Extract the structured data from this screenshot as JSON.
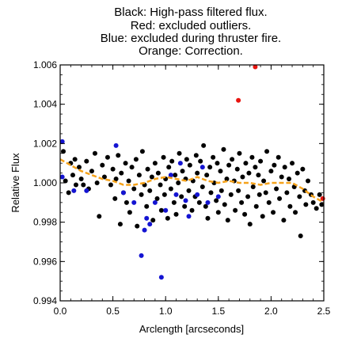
{
  "chart_data": {
    "type": "scatter",
    "title_lines": [
      "Black: High-pass filtered flux.",
      "Red: excluded outliers.",
      "Blue: excluded during thruster fire.",
      "Orange: Correction."
    ],
    "xlabel": "Arclength [arcseconds]",
    "ylabel": "Relative Flux",
    "xlim": [
      0.0,
      2.5
    ],
    "ylim": [
      0.994,
      1.006
    ],
    "x_ticks": [
      "0.0",
      "0.5",
      "1.0",
      "1.5",
      "2.0",
      "2.5"
    ],
    "y_ticks": [
      "0.994",
      "0.996",
      "0.998",
      "1.000",
      "1.002",
      "1.004",
      "1.006"
    ],
    "grid": false,
    "colors": {
      "black": "#000000",
      "red": "#e8140f",
      "blue": "#1414d2",
      "orange": "#f5a21a"
    },
    "series": [
      {
        "color": "black",
        "points": [
          [
            0.03,
            1.0016
          ],
          [
            0.05,
            1.0001
          ],
          [
            0.08,
            0.9995
          ],
          [
            0.1,
            1.001
          ],
          [
            0.12,
            1.0004
          ],
          [
            0.14,
            1.0012
          ],
          [
            0.15,
            0.9999
          ],
          [
            0.18,
            1.0008
          ],
          [
            0.2,
            1.0002
          ],
          [
            0.22,
            0.9999
          ],
          [
            0.25,
            1.0011
          ],
          [
            0.27,
            0.9997
          ],
          [
            0.3,
            1.0006
          ],
          [
            0.33,
            1.0015
          ],
          [
            0.35,
            1.0
          ],
          [
            0.37,
            0.9983
          ],
          [
            0.4,
            1.0009
          ],
          [
            0.42,
            1.0003
          ],
          [
            0.45,
            1.0013
          ],
          [
            0.48,
            0.9999
          ],
          [
            0.5,
            1.0007
          ],
          [
            0.52,
            0.9992
          ],
          [
            0.53,
            1.0002
          ],
          [
            0.55,
            1.0014
          ],
          [
            0.57,
            0.9979
          ],
          [
            0.58,
            1.0005
          ],
          [
            0.6,
            0.9995
          ],
          [
            0.62,
            1.001
          ],
          [
            0.63,
            0.999
          ],
          [
            0.65,
            1.0001
          ],
          [
            0.66,
            0.9985
          ],
          [
            0.68,
            1.0008
          ],
          [
            0.7,
            0.9997
          ],
          [
            0.72,
            1.0012
          ],
          [
            0.73,
            0.9978
          ],
          [
            0.75,
            1.0004
          ],
          [
            0.77,
            0.9994
          ],
          [
            0.78,
            1.0016
          ],
          [
            0.8,
            0.9999
          ],
          [
            0.82,
            0.9988
          ],
          [
            0.83,
            1.0007
          ],
          [
            0.85,
            0.9996
          ],
          [
            0.87,
            1.0003
          ],
          [
            0.88,
            0.9981
          ],
          [
            0.9,
            1.001
          ],
          [
            0.92,
            0.9992
          ],
          [
            0.93,
            1.0005
          ],
          [
            0.95,
            0.9999
          ],
          [
            0.96,
            0.9986
          ],
          [
            0.98,
            1.0013
          ],
          [
            0.99,
            0.9994
          ],
          [
            1.0,
            1.0002
          ],
          [
            1.02,
            0.9982
          ],
          [
            1.03,
            1.0008
          ],
          [
            1.05,
            0.9997
          ],
          [
            1.06,
            1.0011
          ],
          [
            1.08,
            0.999
          ],
          [
            1.09,
            1.0004
          ],
          [
            1.1,
            0.9984
          ],
          [
            1.12,
            1.0
          ],
          [
            1.13,
            1.0015
          ],
          [
            1.15,
            0.9993
          ],
          [
            1.16,
            1.0006
          ],
          [
            1.18,
            0.9988
          ],
          [
            1.19,
            1.0002
          ],
          [
            1.2,
            1.0012
          ],
          [
            1.22,
            0.9996
          ],
          [
            1.23,
            1.0009
          ],
          [
            1.25,
            0.9986
          ],
          [
            1.26,
            1.0001
          ],
          [
            1.28,
            0.9993
          ],
          [
            1.29,
            1.0014
          ],
          [
            1.3,
            1.0005
          ],
          [
            1.32,
            0.999
          ],
          [
            1.33,
            1.0011
          ],
          [
            1.35,
            0.9998
          ],
          [
            1.36,
            1.0019
          ],
          [
            1.38,
            0.9988
          ],
          [
            1.39,
            1.0004
          ],
          [
            1.4,
            0.9982
          ],
          [
            1.42,
            1.0008
          ],
          [
            1.43,
            0.9995
          ],
          [
            1.45,
            1.0013
          ],
          [
            1.46,
            1.0
          ],
          [
            1.48,
            0.9991
          ],
          [
            1.49,
            1.001
          ],
          [
            1.5,
            0.9985
          ],
          [
            1.52,
            1.0006
          ],
          [
            1.53,
            0.9996
          ],
          [
            1.55,
            1.0017
          ],
          [
            1.56,
            0.9989
          ],
          [
            1.58,
            1.0002
          ],
          [
            1.59,
            0.9981
          ],
          [
            1.6,
            1.0009
          ],
          [
            1.62,
            0.9994
          ],
          [
            1.63,
            1.0012
          ],
          [
            1.65,
            1.0001
          ],
          [
            1.66,
            0.9986
          ],
          [
            1.68,
            1.0007
          ],
          [
            1.69,
            0.9996
          ],
          [
            1.7,
            1.0015
          ],
          [
            1.72,
            0.999
          ],
          [
            1.73,
            1.0003
          ],
          [
            1.75,
            0.9984
          ],
          [
            1.76,
            1.001
          ],
          [
            1.78,
            0.9993
          ],
          [
            1.79,
            1.0005
          ],
          [
            1.8,
            0.9979
          ],
          [
            1.82,
            1.0013
          ],
          [
            1.83,
            0.9998
          ],
          [
            1.85,
            1.0008
          ],
          [
            1.86,
            0.9988
          ],
          [
            1.88,
            1.0004
          ],
          [
            1.89,
            0.9994
          ],
          [
            1.9,
            1.0011
          ],
          [
            1.92,
            0.9983
          ],
          [
            1.93,
            1.0001
          ],
          [
            1.95,
            0.9995
          ],
          [
            1.96,
            1.0016
          ],
          [
            1.98,
            0.999
          ],
          [
            2.0,
            1.0006
          ],
          [
            2.02,
            0.9985
          ],
          [
            2.03,
            1.0009
          ],
          [
            2.05,
            0.9997
          ],
          [
            2.07,
            1.0013
          ],
          [
            2.08,
            0.9992
          ],
          [
            2.1,
            1.0003
          ],
          [
            2.12,
            0.9981
          ],
          [
            2.13,
            1.0008
          ],
          [
            2.15,
            0.9995
          ],
          [
            2.17,
            1.0002
          ],
          [
            2.18,
            0.9988
          ],
          [
            2.2,
            1.001
          ],
          [
            2.22,
            0.9998
          ],
          [
            2.23,
            0.9985
          ],
          [
            2.25,
            1.0005
          ],
          [
            2.27,
            0.9993
          ],
          [
            2.28,
            0.9973
          ],
          [
            2.3,
            1.0007
          ],
          [
            2.32,
            0.9996
          ],
          [
            2.33,
            0.9989
          ],
          [
            2.35,
            1.0001
          ],
          [
            2.38,
            0.9994
          ],
          [
            2.4,
            0.999
          ],
          [
            2.43,
            0.9987
          ],
          [
            2.46,
            0.9994
          ],
          [
            2.48,
            0.9989
          ]
        ]
      },
      {
        "color": "red",
        "points": [
          [
            1.69,
            1.0042
          ],
          [
            1.85,
            1.0059
          ],
          [
            2.49,
            0.9992
          ]
        ]
      },
      {
        "color": "blue",
        "points": [
          [
            0.02,
            1.0021
          ],
          [
            0.02,
            1.0003
          ],
          [
            0.13,
            0.9996
          ],
          [
            0.25,
            0.9996
          ],
          [
            0.53,
            1.0019
          ],
          [
            0.6,
            0.9995
          ],
          [
            0.7,
            0.999
          ],
          [
            0.77,
            0.9963
          ],
          [
            0.8,
            0.9976
          ],
          [
            0.82,
            0.9982
          ],
          [
            0.85,
            0.9979
          ],
          [
            0.9,
            0.999
          ],
          [
            0.96,
            0.9952
          ],
          [
            1.0,
            0.9986
          ],
          [
            1.05,
            1.0004
          ],
          [
            1.1,
            0.9994
          ],
          [
            1.14,
            1.001
          ],
          [
            1.19,
            0.9991
          ],
          [
            1.22,
            0.9983
          ],
          [
            1.3,
            0.9994
          ],
          [
            1.35,
            1.0008
          ],
          [
            1.4,
            0.999
          ],
          [
            1.5,
            0.9993
          ]
        ]
      }
    ],
    "correction_line": {
      "color": "orange",
      "x": [
        0.0,
        0.1,
        0.2,
        0.3,
        0.4,
        0.5,
        0.6,
        0.7,
        0.8,
        0.9,
        1.0,
        1.1,
        1.2,
        1.3,
        1.4,
        1.5,
        1.6,
        1.7,
        1.8,
        1.9,
        2.0,
        2.1,
        2.2,
        2.3,
        2.4,
        2.5
      ],
      "y": [
        1.0012,
        1.0009,
        1.0006,
        1.0004,
        1.0002,
        1.0001,
        0.9999,
        0.9999,
        1.0,
        1.0002,
        1.0003,
        1.0002,
        1.0001,
        1.0003,
        1.0001,
        1.0,
        1.0001,
        1.0,
        1.0,
        0.9999,
        1.0,
        1.0,
        1.0,
        0.9997,
        0.9993,
        0.999
      ]
    }
  }
}
